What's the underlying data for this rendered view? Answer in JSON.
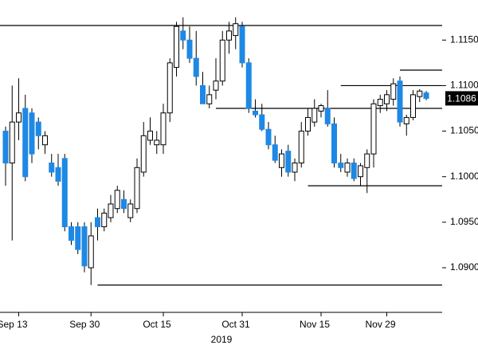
{
  "chart_data": {
    "type": "candlestick",
    "xlabel": "2019",
    "categories": [
      null,
      null,
      "Sep 13",
      null,
      null,
      null,
      null,
      null,
      null,
      null,
      null,
      null,
      null,
      "Sep 30",
      null,
      null,
      null,
      null,
      null,
      null,
      null,
      null,
      null,
      null,
      "Oct 15",
      null,
      null,
      null,
      null,
      null,
      null,
      null,
      null,
      null,
      null,
      null,
      "Oct 31",
      null,
      null,
      null,
      null,
      null,
      null,
      null,
      null,
      null,
      null,
      null,
      "Nov 15",
      null,
      null,
      null,
      null,
      null,
      null,
      null,
      null,
      null,
      "Nov 29",
      null,
      null,
      null,
      null,
      null,
      null
    ],
    "open": [
      1.105,
      1.1015,
      1.106,
      1.1075,
      1.107,
      1.106,
      1.1035,
      1.1015,
      1.101,
      1.102,
      1.0945,
      1.0945,
      1.0945,
      1.09,
      1.0955,
      1.0945,
      1.0955,
      1.0965,
      1.0975,
      1.0955,
      1.0965,
      1.1005,
      1.104,
      1.1035,
      1.1035,
      1.107,
      1.112,
      1.116,
      1.115,
      1.113,
      1.11,
      1.108,
      1.1095,
      1.1105,
      1.115,
      1.1155,
      1.1165,
      1.1125,
      1.1072,
      1.1068,
      1.1052,
      1.1035,
      1.101,
      1.1028,
      1.1005,
      1.1015,
      1.105,
      1.106,
      1.1072,
      1.1075,
      1.1058,
      1.1015,
      1.1005,
      1.1015,
      1.1,
      1.101,
      1.1025,
      1.1078,
      1.108,
      1.1085,
      1.1105,
      1.1058,
      1.1065,
      1.1088,
      1.1092
    ],
    "high": [
      1.1055,
      1.11,
      1.1108,
      1.109,
      1.1075,
      1.1065,
      1.105,
      1.1025,
      1.1025,
      1.1025,
      1.095,
      1.095,
      1.095,
      1.095,
      1.0965,
      1.0965,
      1.098,
      1.099,
      1.0985,
      1.0975,
      1.102,
      1.106,
      1.1065,
      1.105,
      1.108,
      1.113,
      1.117,
      1.1175,
      1.1165,
      1.116,
      1.1115,
      1.11,
      1.113,
      1.116,
      1.117,
      1.1175,
      1.117,
      1.113,
      1.1085,
      1.108,
      1.106,
      1.1045,
      1.103,
      1.1035,
      1.102,
      1.106,
      1.1075,
      1.1085,
      1.108,
      1.1095,
      1.1065,
      1.1025,
      1.102,
      1.102,
      1.1015,
      1.103,
      1.1085,
      1.109,
      1.1095,
      1.1108,
      1.111,
      1.1068,
      1.1095,
      1.1096,
      1.1094
    ],
    "low": [
      1.099,
      1.093,
      1.104,
      1.0995,
      1.1015,
      1.103,
      1.1025,
      1.1,
      1.099,
      1.094,
      1.0925,
      1.0915,
      1.0895,
      1.0881,
      1.093,
      1.094,
      1.095,
      1.096,
      1.096,
      1.095,
      1.096,
      1.1,
      1.1035,
      1.1025,
      1.1025,
      1.106,
      1.111,
      1.114,
      1.1125,
      1.11,
      1.108,
      1.1075,
      1.1085,
      1.11,
      1.1135,
      1.114,
      1.112,
      1.107,
      1.1065,
      1.105,
      1.103,
      1.1015,
      1.1,
      1.1,
      1.0995,
      1.101,
      1.1045,
      1.1055,
      1.1065,
      1.1055,
      1.101,
      1.1005,
      1.1,
      1.0995,
      1.099,
      1.0982,
      1.101,
      1.107,
      1.1072,
      1.1078,
      1.1055,
      1.1045,
      1.1062,
      1.1082,
      1.1084
    ],
    "close": [
      1.1015,
      1.106,
      1.107,
      1.1,
      1.1025,
      1.1045,
      1.1045,
      1.1005,
      1.0995,
      1.0945,
      1.093,
      1.092,
      1.0902,
      1.0935,
      1.0945,
      1.096,
      1.097,
      1.0985,
      1.0965,
      1.097,
      1.101,
      1.1045,
      1.105,
      1.104,
      1.107,
      1.1125,
      1.1165,
      1.115,
      1.113,
      1.111,
      1.108,
      1.109,
      1.1105,
      1.115,
      1.116,
      1.1168,
      1.1125,
      1.1075,
      1.1068,
      1.1052,
      1.1035,
      1.1018,
      1.1025,
      1.1005,
      1.1015,
      1.105,
      1.1065,
      1.1075,
      1.1078,
      1.1058,
      1.1015,
      1.101,
      1.1015,
      1.0998,
      1.1012,
      1.1025,
      1.108,
      1.1085,
      1.109,
      1.1102,
      1.106,
      1.1065,
      1.109,
      1.1094,
      1.1086
    ],
    "last_label": "1.1086",
    "up_color": "#ffffff",
    "down_color": "#1e88e5",
    "hlines": [
      {
        "value": 1.1166,
        "from": 0
      },
      {
        "value": 1.1117,
        "from": 60
      },
      {
        "value": 1.11,
        "from": 51
      },
      {
        "value": 1.1075,
        "from": 32
      },
      {
        "value": 1.099,
        "from": 46
      },
      {
        "value": 1.0881,
        "from": 14
      }
    ],
    "ylim": [
      1.0851,
      1.1194
    ],
    "yticks": [
      {
        "value": 1.09,
        "label": "1.0900"
      },
      {
        "value": 1.095,
        "label": "1.0950"
      },
      {
        "value": 1.1,
        "label": "1.1000"
      },
      {
        "value": 1.105,
        "label": "1.1050"
      },
      {
        "value": 1.11,
        "label": "1.1100"
      },
      {
        "value": 1.115,
        "label": "1.1150"
      }
    ]
  }
}
